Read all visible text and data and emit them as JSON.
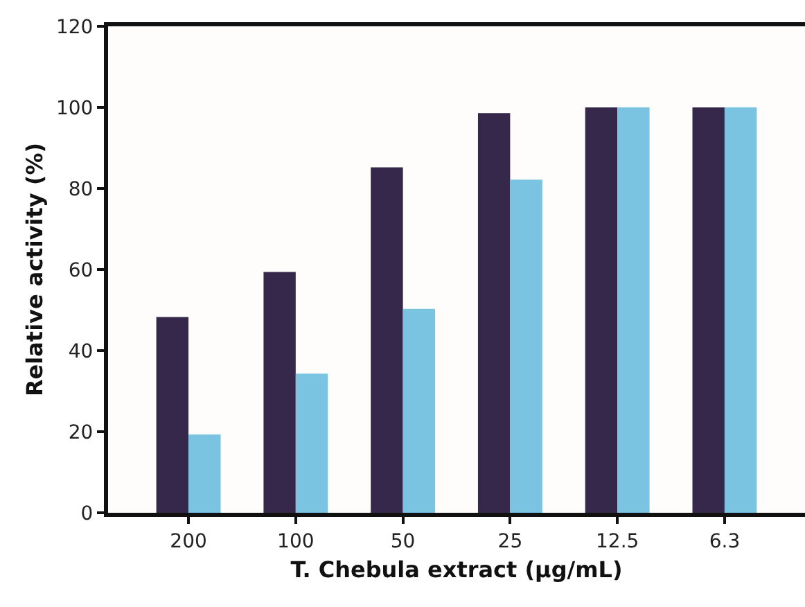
{
  "chart_data": {
    "type": "bar",
    "xlabel": "T. Chebula extract (µg/mL)",
    "ylabel": "Relative activity (%)",
    "categories": [
      "200",
      "100",
      "50",
      "25",
      "12.5",
      "6.3"
    ],
    "series": [
      {
        "color": "#35284a",
        "values": [
          48.3,
          59.4,
          85.2,
          98.6,
          100,
          100
        ]
      },
      {
        "color": "#7ac4e2",
        "values": [
          19.3,
          34.3,
          50.3,
          82.2,
          100,
          100
        ]
      }
    ],
    "ylim": [
      0,
      120
    ],
    "yticks": [
      0,
      20,
      40,
      60,
      80,
      100,
      120
    ]
  }
}
